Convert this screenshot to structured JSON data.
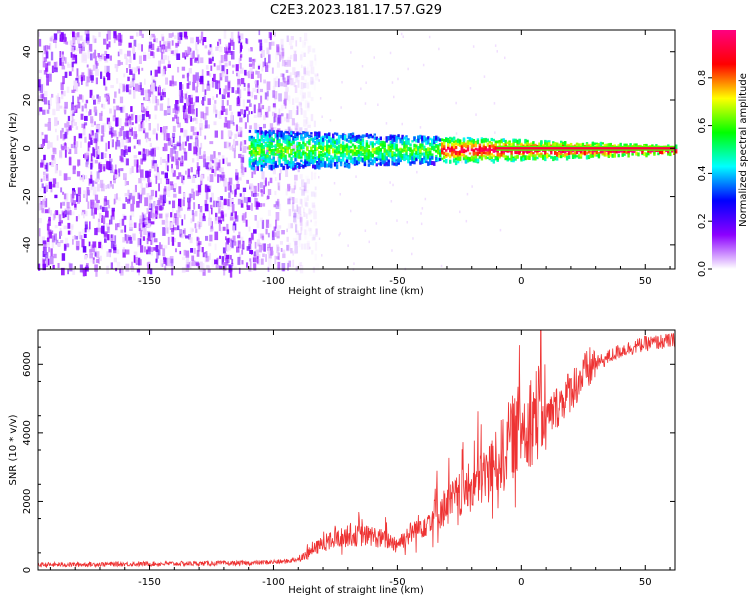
{
  "title": "C2E3.2023.181.17.57.G29",
  "chart_data": [
    {
      "type": "heatmap",
      "name": "spectrogram",
      "xlabel": "Height of straight line (km)",
      "ylabel": "Frequency (Hz)",
      "xlim": [
        -195,
        62
      ],
      "ylim": [
        -50,
        49
      ],
      "xticks": [
        -150,
        -100,
        -50,
        0,
        50
      ],
      "yticks": [
        -40,
        -20,
        0,
        20,
        40
      ],
      "noise_region_x": [
        -195,
        -87
      ],
      "signal_onset_x": -110,
      "signal_center_freq": 0,
      "colorbar": {
        "label": "Normalized spectral amplitude",
        "range": [
          0,
          1
        ],
        "ticks": [
          0.0,
          0.2,
          0.4,
          0.6,
          0.8
        ],
        "colors": [
          "#ffffff",
          "#8c00ff",
          "#0000ff",
          "#00ffff",
          "#00ff00",
          "#ffff00",
          "#ff0000",
          "#ff0080"
        ]
      }
    },
    {
      "type": "line",
      "name": "snr",
      "xlabel": "Height of straight line (km)",
      "ylabel": "SNR (10 * v/v)",
      "xlim": [
        -195,
        62
      ],
      "ylim": [
        0,
        7000
      ],
      "xticks": [
        -150,
        -100,
        -50,
        0,
        50
      ],
      "yticks": [
        0,
        2000,
        4000,
        6000
      ],
      "color": "#ee3333",
      "x": [
        -195,
        -150,
        -110,
        -95,
        -88,
        -80,
        -70,
        -60,
        -50,
        -40,
        -30,
        -20,
        -10,
        -5,
        0,
        10,
        20,
        30,
        40,
        50,
        62
      ],
      "y": [
        150,
        180,
        200,
        250,
        350,
        700,
        900,
        900,
        700,
        1200,
        1700,
        2200,
        2800,
        3400,
        3800,
        4300,
        5200,
        6000,
        6400,
        6600,
        6700
      ]
    }
  ]
}
